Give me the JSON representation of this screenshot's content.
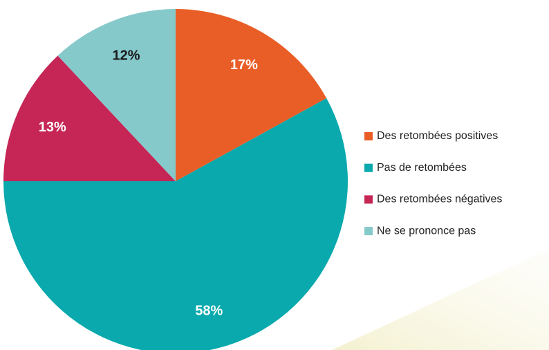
{
  "chart_data": {
    "type": "pie",
    "categories": [
      "Des retombées positives",
      "Pas de retombées",
      "Des retombées négatives",
      "Ne se prononce pas"
    ],
    "values": [
      17,
      58,
      13,
      12
    ],
    "value_labels": [
      "17%",
      "58%",
      "13%",
      "12%"
    ],
    "colors": [
      "#e95e27",
      "#09a9ad",
      "#c52656",
      "#86c9cb"
    ],
    "label_colors": [
      "#ffffff",
      "#ffffff",
      "#ffffff",
      "#1a1a1a"
    ],
    "legend": "right"
  }
}
